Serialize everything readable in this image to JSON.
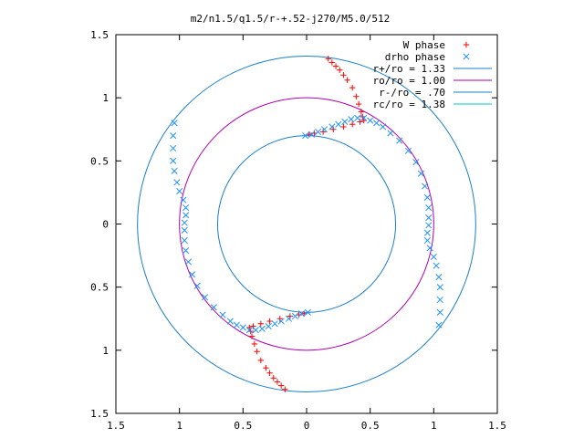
{
  "chart_data": {
    "type": "scatter",
    "title": "m2/n1.5/q1.5/r-+.52-j270/M5.0/512",
    "xlabel": "",
    "ylabel": "",
    "xlim": [
      -1.5,
      1.5
    ],
    "ylim": [
      -1.5,
      1.5
    ],
    "x_ticks": [
      "1.5",
      "1",
      "0.5",
      "0",
      "0.5",
      "1",
      "1.5"
    ],
    "y_ticks": [
      "1.5",
      "1",
      "0.5",
      "0",
      "0.5",
      "1",
      "1.5"
    ],
    "grid": false,
    "legend_position": "top-right",
    "legend": [
      {
        "label": "W phase",
        "symbol": "plus",
        "color": "#ff0000"
      },
      {
        "label": "drho phase",
        "symbol": "cross",
        "color": "#1e90ff"
      },
      {
        "label": "r+/ro = 1.33",
        "symbol": "line",
        "color": "#1a7fc8"
      },
      {
        "label": "ro/ro = 1.00",
        "symbol": "line",
        "color": "#b000b0"
      },
      {
        "label": "r-/ro = .70",
        "symbol": "line",
        "color": "#1a7fc8"
      },
      {
        "label": "rc/ro = 1.38",
        "symbol": "line",
        "color": "#00c8c8"
      }
    ],
    "circles": [
      {
        "name": "r+/ro",
        "r": 1.33,
        "color": "#1a7fc8"
      },
      {
        "name": "ro/ro",
        "r": 1.0,
        "color": "#b000b0"
      },
      {
        "name": "r-/ro",
        "r": 0.7,
        "color": "#1a7fc8"
      }
    ],
    "series": [
      {
        "name": "W phase",
        "marker": "plus",
        "color": "#ff0000",
        "points": [
          [
            0.17,
            1.31
          ],
          [
            0.2,
            1.28
          ],
          [
            0.23,
            1.25
          ],
          [
            0.26,
            1.22
          ],
          [
            0.29,
            1.18
          ],
          [
            0.32,
            1.14
          ],
          [
            0.36,
            1.08
          ],
          [
            0.39,
            1.01
          ],
          [
            0.41,
            0.95
          ],
          [
            0.43,
            0.89
          ],
          [
            0.44,
            0.85
          ],
          [
            0.45,
            0.82
          ],
          [
            0.42,
            0.81
          ],
          [
            0.36,
            0.79
          ],
          [
            0.29,
            0.77
          ],
          [
            0.21,
            0.75
          ],
          [
            0.13,
            0.73
          ],
          [
            0.06,
            0.72
          ],
          [
            0.02,
            0.71
          ],
          [
            -0.17,
            -1.31
          ],
          [
            -0.2,
            -1.28
          ],
          [
            -0.23,
            -1.25
          ],
          [
            -0.26,
            -1.22
          ],
          [
            -0.29,
            -1.18
          ],
          [
            -0.32,
            -1.14
          ],
          [
            -0.36,
            -1.08
          ],
          [
            -0.39,
            -1.01
          ],
          [
            -0.41,
            -0.95
          ],
          [
            -0.43,
            -0.89
          ],
          [
            -0.44,
            -0.85
          ],
          [
            -0.45,
            -0.82
          ],
          [
            -0.42,
            -0.81
          ],
          [
            -0.36,
            -0.79
          ],
          [
            -0.29,
            -0.77
          ],
          [
            -0.21,
            -0.75
          ],
          [
            -0.13,
            -0.73
          ],
          [
            -0.06,
            -0.72
          ],
          [
            -0.02,
            -0.71
          ]
        ]
      },
      {
        "name": "drho phase",
        "marker": "cross",
        "color": "#1e90ff",
        "points": [
          [
            -0.01,
            0.7
          ],
          [
            0.04,
            0.71
          ],
          [
            0.09,
            0.73
          ],
          [
            0.14,
            0.75
          ],
          [
            0.2,
            0.77
          ],
          [
            0.25,
            0.79
          ],
          [
            0.3,
            0.81
          ],
          [
            0.35,
            0.83
          ],
          [
            0.4,
            0.84
          ],
          [
            0.45,
            0.84
          ],
          [
            0.5,
            0.82
          ],
          [
            0.55,
            0.8
          ],
          [
            0.6,
            0.77
          ],
          [
            0.66,
            0.72
          ],
          [
            0.73,
            0.66
          ],
          [
            0.8,
            0.58
          ],
          [
            0.86,
            0.49
          ],
          [
            0.9,
            0.4
          ],
          [
            0.93,
            0.3
          ],
          [
            0.95,
            0.21
          ],
          [
            0.96,
            0.13
          ],
          [
            0.96,
            0.05
          ],
          [
            0.96,
            -0.01
          ],
          [
            0.95,
            -0.07
          ],
          [
            0.95,
            -0.13
          ],
          [
            0.97,
            -0.19
          ],
          [
            1.0,
            -0.26
          ],
          [
            1.02,
            -0.33
          ],
          [
            1.04,
            -0.42
          ],
          [
            1.05,
            -0.5
          ],
          [
            1.05,
            -0.6
          ],
          [
            1.05,
            -0.7
          ],
          [
            1.04,
            -0.8
          ],
          [
            0.01,
            -0.7
          ],
          [
            -0.04,
            -0.71
          ],
          [
            -0.09,
            -0.73
          ],
          [
            -0.14,
            -0.75
          ],
          [
            -0.2,
            -0.77
          ],
          [
            -0.25,
            -0.79
          ],
          [
            -0.3,
            -0.81
          ],
          [
            -0.35,
            -0.83
          ],
          [
            -0.4,
            -0.84
          ],
          [
            -0.45,
            -0.84
          ],
          [
            -0.5,
            -0.82
          ],
          [
            -0.55,
            -0.8
          ],
          [
            -0.6,
            -0.77
          ],
          [
            -0.66,
            -0.72
          ],
          [
            -0.73,
            -0.66
          ],
          [
            -0.8,
            -0.58
          ],
          [
            -0.86,
            -0.49
          ],
          [
            -0.9,
            -0.4
          ],
          [
            -0.93,
            -0.3
          ],
          [
            -0.95,
            -0.21
          ],
          [
            -0.96,
            -0.13
          ],
          [
            -0.96,
            -0.05
          ],
          [
            -0.96,
            0.01
          ],
          [
            -0.95,
            0.07
          ],
          [
            -0.95,
            0.13
          ],
          [
            -0.97,
            0.19
          ],
          [
            -1.0,
            0.26
          ],
          [
            -1.02,
            0.33
          ],
          [
            -1.04,
            0.42
          ],
          [
            -1.05,
            0.5
          ],
          [
            -1.05,
            0.6
          ],
          [
            -1.05,
            0.7
          ],
          [
            -1.04,
            0.8
          ]
        ]
      }
    ]
  }
}
